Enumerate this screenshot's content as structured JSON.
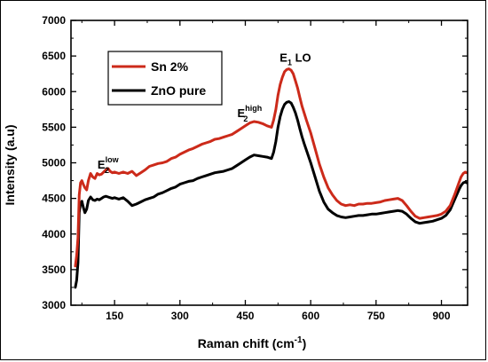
{
  "chart_data": {
    "type": "line",
    "xlabel": "Raman chift (cm",
    "xlabel_sup": "-1",
    "xlabel_end": ")",
    "ylabel": "Intensity (a.u)",
    "xlim": [
      50,
      960
    ],
    "ylim": [
      3000,
      7000
    ],
    "xticks": [
      150,
      300,
      450,
      600,
      750,
      900
    ],
    "yticks": [
      3000,
      3500,
      4000,
      4500,
      5000,
      5500,
      6000,
      6500,
      7000
    ],
    "legend_position": "top-left",
    "annotations": [
      {
        "main": "E",
        "sub": "2",
        "sup": "low",
        "x": 135,
        "y": 4920
      },
      {
        "main": "E",
        "sub": "2",
        "sup": "high",
        "x": 460,
        "y": 5640
      },
      {
        "main": "E",
        "sub": "1",
        "after": " LO",
        "x": 565,
        "y": 6420
      }
    ],
    "series": [
      {
        "name": "Sn 2%",
        "color": "#cc2a1a",
        "x": [
          60,
          63,
          66,
          69,
          72,
          75,
          78,
          82,
          86,
          90,
          95,
          100,
          105,
          110,
          115,
          120,
          125,
          130,
          135,
          140,
          145,
          150,
          160,
          170,
          180,
          190,
          200,
          210,
          220,
          230,
          240,
          250,
          260,
          270,
          280,
          290,
          300,
          310,
          320,
          330,
          340,
          350,
          360,
          370,
          380,
          390,
          400,
          410,
          420,
          430,
          440,
          450,
          460,
          470,
          480,
          490,
          500,
          510,
          515,
          520,
          525,
          530,
          535,
          540,
          545,
          550,
          555,
          560,
          565,
          570,
          575,
          580,
          585,
          590,
          600,
          610,
          620,
          630,
          640,
          650,
          660,
          670,
          680,
          690,
          700,
          710,
          720,
          730,
          740,
          750,
          760,
          770,
          780,
          790,
          800,
          810,
          820,
          830,
          840,
          850,
          860,
          870,
          880,
          890,
          900,
          910,
          920,
          930,
          940,
          945,
          950,
          955,
          958
        ],
        "y": [
          3550,
          3700,
          3950,
          4550,
          4720,
          4750,
          4700,
          4650,
          4620,
          4750,
          4850,
          4800,
          4780,
          4850,
          4830,
          4840,
          4870,
          4900,
          4920,
          4880,
          4860,
          4870,
          4850,
          4870,
          4850,
          4880,
          4820,
          4860,
          4900,
          4950,
          4970,
          4990,
          5000,
          5020,
          5060,
          5080,
          5120,
          5150,
          5180,
          5200,
          5230,
          5260,
          5280,
          5300,
          5330,
          5340,
          5360,
          5380,
          5400,
          5440,
          5480,
          5520,
          5560,
          5580,
          5570,
          5550,
          5520,
          5500,
          5600,
          5750,
          5950,
          6100,
          6200,
          6280,
          6310,
          6320,
          6300,
          6250,
          6150,
          6050,
          5920,
          5800,
          5700,
          5600,
          5420,
          5200,
          4980,
          4800,
          4650,
          4550,
          4470,
          4420,
          4400,
          4410,
          4400,
          4420,
          4420,
          4430,
          4430,
          4440,
          4450,
          4470,
          4480,
          4490,
          4500,
          4470,
          4400,
          4320,
          4250,
          4220,
          4230,
          4240,
          4250,
          4260,
          4280,
          4320,
          4400,
          4550,
          4720,
          4800,
          4850,
          4870,
          4860
        ]
      },
      {
        "name": "ZnO pure",
        "color": "#000000",
        "x": [
          60,
          63,
          66,
          69,
          72,
          75,
          78,
          82,
          86,
          90,
          95,
          100,
          105,
          110,
          115,
          120,
          125,
          130,
          135,
          140,
          145,
          150,
          160,
          170,
          180,
          190,
          200,
          210,
          220,
          230,
          240,
          250,
          260,
          270,
          280,
          290,
          300,
          310,
          320,
          330,
          340,
          350,
          360,
          370,
          380,
          390,
          400,
          410,
          420,
          430,
          440,
          450,
          460,
          470,
          480,
          490,
          500,
          510,
          515,
          520,
          525,
          530,
          535,
          540,
          545,
          550,
          555,
          560,
          565,
          570,
          575,
          580,
          585,
          590,
          600,
          610,
          620,
          630,
          640,
          650,
          660,
          670,
          680,
          690,
          700,
          710,
          720,
          730,
          740,
          750,
          760,
          770,
          780,
          790,
          800,
          810,
          820,
          830,
          840,
          850,
          860,
          870,
          880,
          890,
          900,
          910,
          920,
          930,
          940,
          945,
          950,
          955,
          958
        ],
        "y": [
          3250,
          3350,
          3600,
          4300,
          4430,
          4460,
          4380,
          4300,
          4350,
          4470,
          4520,
          4480,
          4470,
          4490,
          4480,
          4500,
          4520,
          4530,
          4520,
          4510,
          4500,
          4510,
          4490,
          4510,
          4460,
          4400,
          4420,
          4450,
          4480,
          4500,
          4520,
          4560,
          4580,
          4610,
          4640,
          4660,
          4700,
          4720,
          4740,
          4750,
          4780,
          4800,
          4820,
          4840,
          4860,
          4870,
          4880,
          4900,
          4920,
          4960,
          5000,
          5040,
          5080,
          5110,
          5100,
          5090,
          5080,
          5060,
          5150,
          5300,
          5500,
          5650,
          5750,
          5820,
          5850,
          5860,
          5840,
          5780,
          5700,
          5600,
          5480,
          5370,
          5270,
          5180,
          5000,
          4800,
          4600,
          4450,
          4350,
          4300,
          4260,
          4240,
          4230,
          4240,
          4250,
          4260,
          4260,
          4270,
          4280,
          4280,
          4290,
          4300,
          4310,
          4320,
          4330,
          4320,
          4280,
          4220,
          4170,
          4150,
          4160,
          4170,
          4180,
          4200,
          4220,
          4260,
          4340,
          4480,
          4620,
          4680,
          4720,
          4730,
          4720
        ]
      }
    ]
  }
}
